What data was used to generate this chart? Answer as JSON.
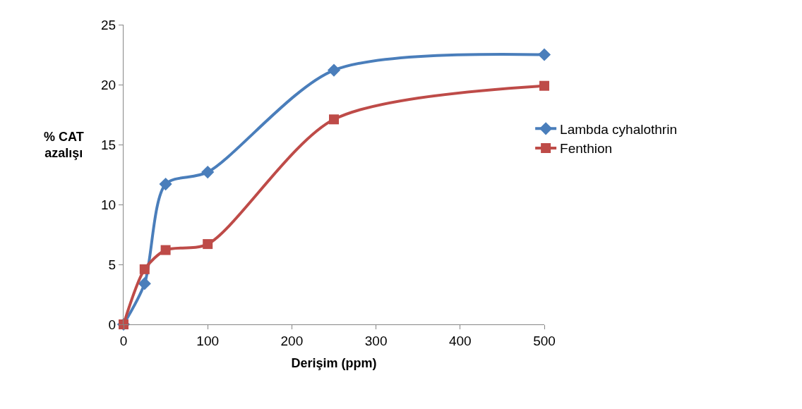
{
  "chart_data": {
    "type": "line",
    "xlabel": "Derişim (ppm)",
    "ylabel": "% CAT\nazalışı",
    "x": [
      0,
      25,
      50,
      100,
      250,
      500
    ],
    "series": [
      {
        "name": "Lambda cyhalothrin",
        "color": "#4a7ebb",
        "marker": "diamond",
        "values": [
          0,
          3.4,
          11.7,
          12.7,
          21.2,
          22.5
        ]
      },
      {
        "name": "Fenthion",
        "color": "#be4b48",
        "marker": "square",
        "values": [
          0,
          4.6,
          6.2,
          6.7,
          17.1,
          19.9
        ]
      }
    ],
    "xlim": [
      0,
      500
    ],
    "xticks": [
      0,
      100,
      200,
      300,
      400,
      500
    ],
    "ylim": [
      0,
      25
    ],
    "yticks": [
      0,
      5,
      10,
      15,
      20,
      25
    ],
    "legend": "right"
  }
}
